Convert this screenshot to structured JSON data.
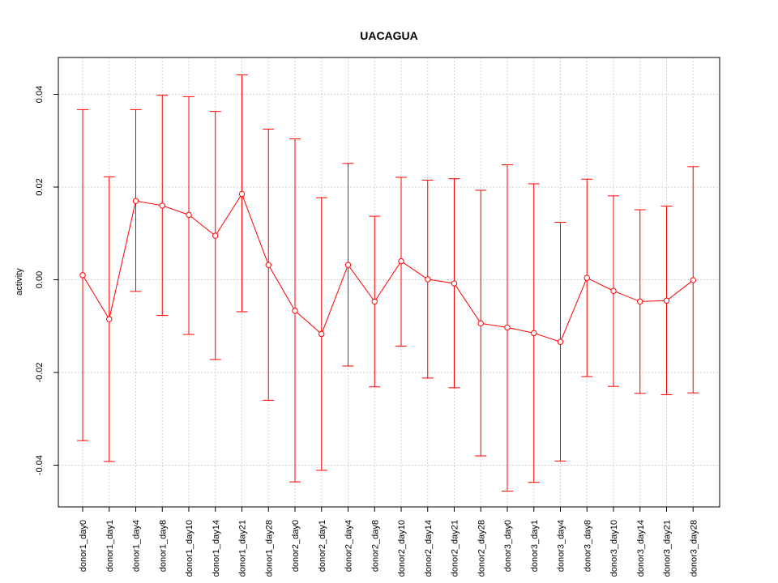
{
  "chart_data": {
    "type": "line",
    "title": "UACAGUA",
    "xlabel": "",
    "ylabel": "activity",
    "categories": [
      "donor1_day0",
      "donor1_day1",
      "donor1_day4",
      "donor1_day8",
      "donor1_day10",
      "donor1_day14",
      "donor1_day21",
      "donor1_day28",
      "donor2_day0",
      "donor2_day1",
      "donor2_day4",
      "donor2_day8",
      "donor2_day10",
      "donor2_day14",
      "donor2_day21",
      "donor2_day28",
      "donor3_day0",
      "donor3_day1",
      "donor3_day4",
      "donor3_day8",
      "donor3_day10",
      "donor3_day14",
      "donor3_day21",
      "donor3_day28"
    ],
    "series": [
      {
        "values": [
          0.001,
          -0.0085,
          0.017,
          0.016,
          0.014,
          0.0095,
          0.0185,
          0.0032,
          -0.0067,
          -0.0117,
          0.0032,
          -0.0047,
          0.004,
          0.0001,
          -0.0008,
          -0.0094,
          -0.0103,
          -0.0115,
          -0.0134,
          0.0004,
          -0.0024,
          -0.0047,
          -0.0045,
          -0.0001
        ],
        "upper": [
          0.0367,
          0.0222,
          0.0367,
          0.0398,
          0.0395,
          0.0363,
          0.0442,
          0.0325,
          0.0304,
          0.0177,
          0.0251,
          0.0137,
          0.0221,
          0.0215,
          0.0218,
          0.0193,
          0.0248,
          0.0207,
          0.0124,
          0.0217,
          0.0181,
          0.0151,
          0.0159,
          0.0244
        ],
        "lower": [
          -0.0347,
          -0.0392,
          -0.0025,
          -0.0077,
          -0.0118,
          -0.0172,
          -0.0069,
          -0.026,
          -0.0436,
          -0.0411,
          -0.0186,
          -0.0231,
          -0.0143,
          -0.0212,
          -0.0233,
          -0.038,
          -0.0456,
          -0.0437,
          -0.0391,
          -0.0209,
          -0.023,
          -0.0245,
          -0.0248,
          -0.0244
        ],
        "color": "#ff0000"
      }
    ],
    "yticks": [
      -0.04,
      -0.02,
      0.0,
      0.02,
      0.04
    ],
    "ytick_labels": [
      "-0.04",
      "-0.02",
      "0.00",
      "0.02",
      "0.04"
    ],
    "ylim": [
      -0.049,
      0.048
    ],
    "grid": true,
    "error_bars": true,
    "legend": "none"
  }
}
